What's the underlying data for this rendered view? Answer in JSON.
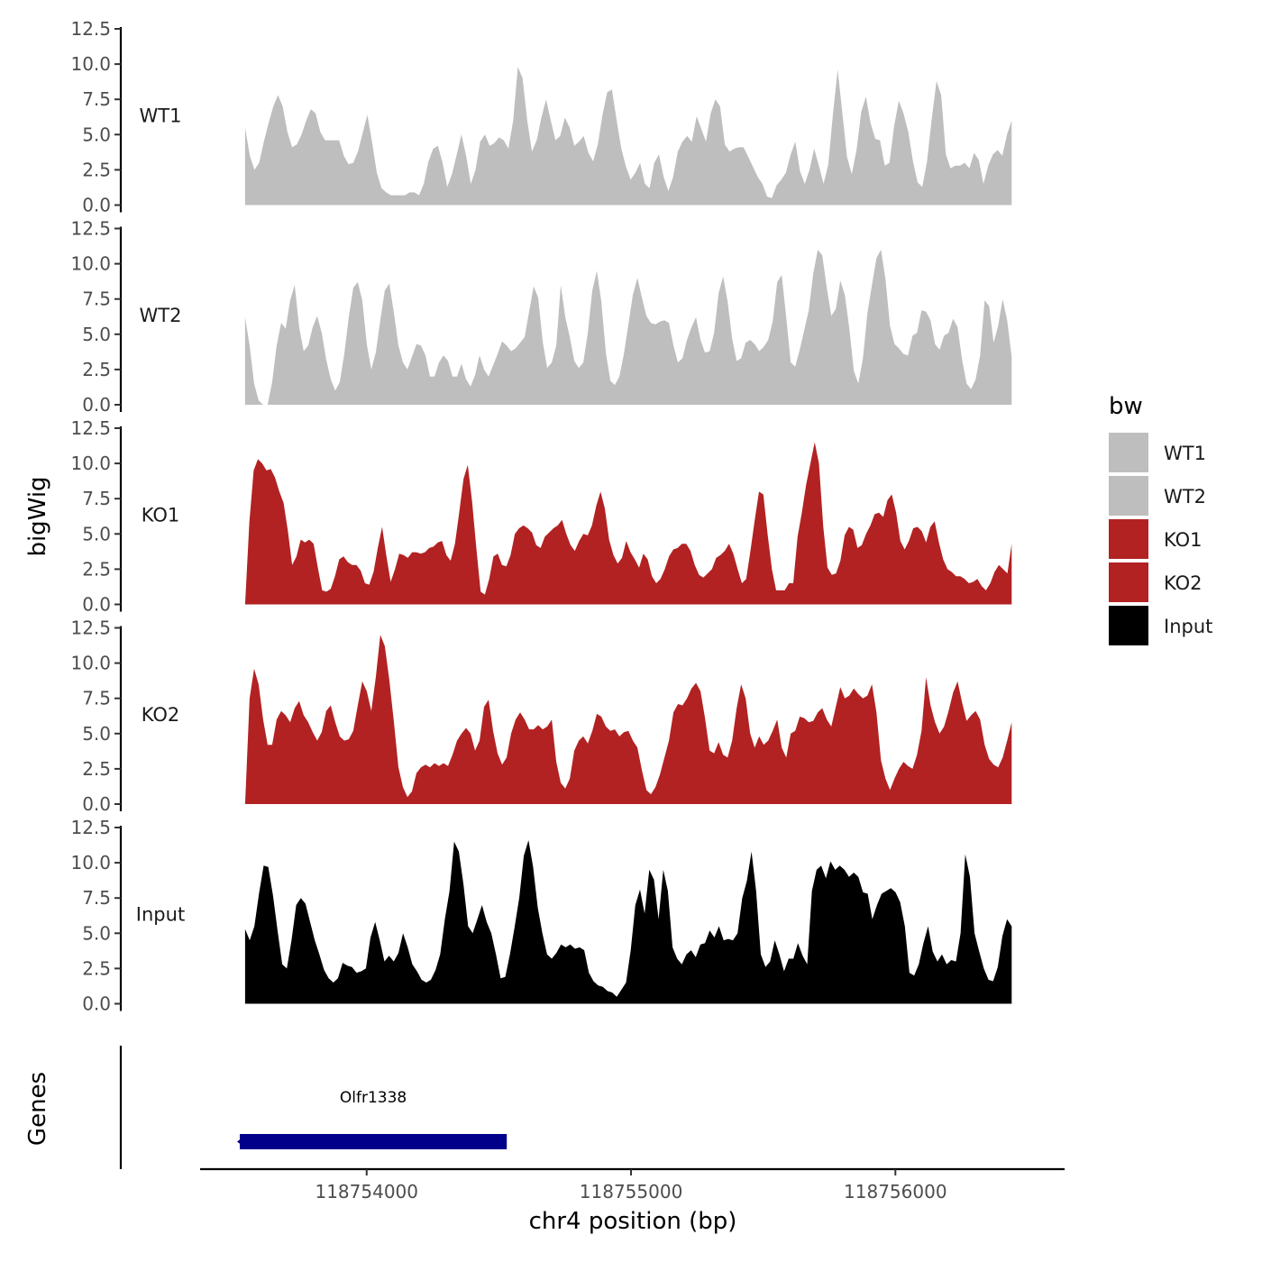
{
  "chart_data": {
    "type": "area",
    "ylabel": "bigWig",
    "xlabel": "chr4 position (bp)",
    "genes_label": "Genes",
    "ylim": [
      0,
      12.5
    ],
    "yticks": [
      "0.0",
      "2.5",
      "5.0",
      "7.5",
      "10.0",
      "12.5"
    ],
    "xlim": [
      118753370,
      118756640
    ],
    "xticks": [
      {
        "value": 118754000,
        "label": "118754000"
      },
      {
        "value": 118755000,
        "label": "118755000"
      },
      {
        "value": 118756000,
        "label": "118756000"
      }
    ],
    "x_start": 118753540,
    "x_end": 118756440,
    "legend": {
      "title": "bw",
      "placement": "right"
    },
    "series": [
      {
        "name": "WT1",
        "color": "#BEBEBE",
        "y": [
          5.5,
          3.5,
          2.5,
          3.0,
          4.5,
          5.8,
          7.0,
          7.8,
          7.0,
          5.2,
          4.1,
          4.3,
          5.0,
          6.0,
          6.8,
          6.5,
          5.2,
          4.6,
          4.6,
          4.6,
          4.6,
          3.5,
          2.9,
          3.0,
          3.8,
          5.1,
          6.4,
          4.5,
          2.3,
          1.2,
          0.9,
          0.7,
          0.7,
          0.7,
          0.7,
          0.9,
          0.9,
          0.7,
          1.5,
          3.1,
          4.0,
          4.2,
          3.0,
          1.3,
          2.2,
          3.6,
          5.0,
          3.5,
          1.5,
          2.5,
          4.5,
          5.0,
          4.2,
          4.4,
          4.8,
          4.6,
          4.0,
          6.0,
          9.8,
          9.0,
          6.0,
          3.8,
          4.6,
          6.2,
          7.5,
          6.0,
          4.6,
          4.9,
          6.2,
          5.5,
          4.2,
          4.5,
          4.9,
          3.7,
          3.1,
          4.3,
          6.4,
          8.0,
          8.2,
          6.0,
          4.0,
          2.7,
          1.8,
          2.3,
          3.0,
          1.5,
          1.2,
          3.0,
          3.6,
          2.0,
          1.0,
          2.0,
          3.8,
          4.5,
          4.9,
          4.5,
          6.3,
          5.4,
          4.5,
          6.5,
          7.5,
          7.0,
          4.3,
          3.8,
          4.0,
          4.1,
          4.1,
          3.4,
          2.7,
          2.0,
          1.5,
          0.6,
          0.5,
          1.4,
          1.8,
          2.3,
          3.6,
          4.5,
          2.4,
          1.5,
          2.5,
          4.0,
          2.8,
          1.5,
          2.9,
          6.5,
          9.6,
          6.5,
          3.4,
          2.2,
          3.9,
          6.6,
          7.7,
          5.8,
          4.7,
          4.6,
          2.8,
          3.0,
          5.6,
          7.4,
          6.5,
          5.2,
          3.1,
          1.6,
          1.3,
          3.1,
          6.1,
          8.8,
          7.8,
          3.6,
          2.6,
          2.8,
          2.8,
          3.0,
          2.6,
          3.7,
          3.2,
          1.5,
          2.8,
          3.6,
          3.9,
          3.5,
          5.0,
          6.0
        ]
      },
      {
        "name": "WT2",
        "color": "#BEBEBE",
        "y": [
          6.2,
          4.2,
          1.5,
          0.3,
          0.0,
          0.0,
          1.6,
          4.2,
          5.8,
          5.4,
          7.4,
          8.5,
          5.5,
          3.8,
          4.2,
          5.5,
          6.3,
          5.1,
          3.2,
          1.8,
          1.0,
          1.6,
          3.6,
          6.2,
          8.3,
          8.7,
          7.4,
          4.3,
          2.5,
          3.7,
          6.0,
          8.1,
          8.6,
          6.5,
          4.2,
          3.0,
          2.5,
          3.4,
          4.3,
          4.2,
          3.5,
          2.0,
          2.0,
          3.0,
          3.5,
          3.1,
          2.0,
          2.0,
          2.9,
          1.8,
          1.3,
          2.1,
          3.5,
          2.5,
          2.0,
          2.8,
          3.6,
          4.5,
          4.2,
          3.8,
          4.0,
          4.4,
          4.8,
          6.6,
          8.4,
          7.6,
          4.5,
          2.6,
          3.0,
          4.2,
          8.5,
          6.2,
          4.8,
          3.1,
          2.6,
          3.0,
          5.1,
          8.1,
          9.5,
          7.3,
          3.7,
          1.7,
          1.4,
          2.0,
          3.6,
          5.7,
          7.8,
          9.0,
          7.6,
          6.3,
          5.8,
          5.7,
          5.9,
          6.0,
          5.8,
          4.2,
          3.0,
          3.3,
          4.6,
          5.5,
          6.2,
          4.6,
          3.7,
          3.8,
          5.1,
          7.9,
          9.1,
          7.3,
          4.7,
          3.1,
          3.3,
          4.4,
          4.6,
          4.3,
          3.8,
          4.1,
          4.6,
          5.9,
          8.7,
          9.2,
          6.2,
          3.0,
          2.7,
          3.9,
          5.3,
          6.7,
          9.3,
          11.0,
          10.6,
          8.3,
          6.3,
          6.8,
          8.8,
          7.8,
          5.4,
          2.4,
          1.5,
          3.3,
          6.5,
          8.5,
          10.4,
          11.0,
          8.9,
          5.6,
          4.3,
          4.0,
          3.6,
          3.5,
          4.9,
          5.1,
          6.7,
          6.6,
          6.0,
          4.3,
          3.9,
          4.9,
          5.1,
          6.1,
          5.5,
          3.2,
          1.5,
          1.1,
          1.8,
          3.5,
          7.4,
          7.0,
          4.4,
          5.6,
          7.5,
          6.0,
          3.4
        ]
      },
      {
        "name": "KO1",
        "color": "#B22222",
        "y": [
          0.0,
          5.8,
          9.5,
          10.3,
          10.0,
          9.5,
          9.6,
          9.0,
          8.0,
          7.2,
          5.2,
          2.8,
          3.4,
          4.6,
          4.4,
          4.6,
          4.3,
          2.6,
          1.0,
          0.9,
          1.1,
          2.0,
          3.2,
          3.4,
          3.0,
          2.8,
          2.8,
          2.4,
          1.5,
          1.4,
          2.3,
          4.0,
          5.5,
          3.4,
          1.6,
          2.5,
          3.6,
          3.5,
          3.3,
          3.7,
          3.7,
          3.6,
          3.7,
          4.0,
          4.1,
          4.4,
          4.5,
          3.5,
          3.1,
          4.3,
          6.5,
          8.9,
          9.9,
          7.3,
          4.0,
          0.9,
          0.7,
          1.8,
          3.4,
          3.6,
          2.8,
          2.7,
          3.5,
          5.0,
          5.4,
          5.6,
          5.4,
          5.1,
          4.2,
          4.0,
          4.8,
          5.1,
          5.4,
          5.6,
          6.0,
          5.0,
          4.2,
          3.8,
          4.5,
          5.0,
          4.9,
          5.6,
          7.0,
          8.0,
          6.8,
          4.6,
          3.5,
          2.9,
          3.3,
          4.5,
          3.7,
          3.2,
          2.6,
          3.6,
          3.2,
          2.0,
          1.5,
          1.8,
          2.5,
          3.4,
          3.9,
          4.0,
          4.3,
          4.3,
          3.8,
          2.8,
          2.1,
          1.9,
          2.2,
          2.5,
          3.3,
          3.5,
          3.8,
          4.3,
          3.6,
          2.5,
          1.5,
          1.8,
          3.8,
          6.0,
          8.0,
          7.8,
          5.0,
          2.5,
          1.0,
          1.0,
          1.0,
          1.5,
          1.5,
          4.8,
          6.5,
          8.5,
          10.0,
          11.5,
          10.0,
          5.5,
          2.6,
          2.1,
          2.2,
          3.1,
          4.9,
          5.5,
          5.3,
          4.0,
          4.2,
          5.0,
          5.6,
          6.4,
          6.5,
          6.2,
          7.4,
          7.8,
          6.5,
          4.5,
          3.9,
          4.5,
          5.4,
          5.5,
          5.2,
          4.4,
          5.5,
          5.9,
          4.4,
          3.2,
          2.5,
          2.3,
          2.0,
          2.0,
          1.8,
          1.5,
          1.6,
          1.8,
          1.3,
          1.0,
          1.5,
          2.3,
          2.8,
          2.5,
          2.2,
          4.3
        ]
      },
      {
        "name": "KO2",
        "color": "#B22222",
        "y": [
          0.0,
          7.5,
          9.6,
          8.5,
          6.0,
          4.2,
          4.2,
          6.0,
          6.6,
          6.3,
          5.8,
          6.8,
          7.3,
          6.3,
          5.8,
          5.1,
          4.5,
          5.1,
          6.6,
          7.0,
          5.8,
          4.8,
          4.5,
          4.6,
          5.2,
          7.0,
          8.7,
          8.0,
          6.6,
          9.0,
          12.0,
          11.2,
          8.8,
          5.8,
          2.6,
          1.2,
          0.5,
          0.9,
          2.2,
          2.6,
          2.8,
          2.6,
          2.9,
          2.7,
          2.9,
          2.7,
          3.5,
          4.5,
          5.0,
          5.4,
          5.0,
          3.8,
          4.5,
          6.9,
          7.4,
          5.2,
          3.6,
          2.8,
          3.3,
          5.0,
          6.0,
          6.5,
          6.0,
          5.3,
          5.3,
          5.6,
          5.3,
          5.5,
          6.0,
          3.0,
          1.5,
          1.1,
          1.8,
          3.8,
          4.5,
          4.8,
          4.3,
          5.2,
          6.4,
          6.2,
          5.5,
          5.2,
          5.3,
          4.8,
          5.1,
          5.2,
          4.5,
          4.0,
          2.4,
          1.0,
          0.7,
          1.2,
          2.1,
          3.3,
          4.5,
          6.5,
          7.1,
          7.0,
          7.5,
          8.2,
          8.6,
          8.0,
          6.1,
          3.8,
          3.6,
          4.4,
          3.5,
          3.3,
          4.5,
          6.8,
          8.5,
          7.5,
          5.0,
          4.0,
          4.8,
          4.2,
          4.5,
          5.2,
          6.0,
          4.0,
          3.3,
          5.0,
          5.2,
          6.2,
          6.1,
          5.8,
          5.9,
          6.5,
          6.8,
          6.0,
          5.5,
          6.9,
          8.3,
          7.5,
          7.7,
          8.2,
          7.8,
          7.5,
          7.7,
          8.5,
          6.5,
          3.1,
          1.8,
          1.0,
          1.8,
          2.5,
          3.0,
          2.7,
          2.5,
          3.5,
          5.2,
          9.0,
          7.0,
          5.8,
          5.0,
          5.5,
          6.6,
          7.9,
          8.7,
          7.2,
          5.9,
          6.3,
          6.6,
          6.0,
          4.2,
          3.2,
          2.8,
          2.6,
          3.3,
          4.5,
          5.8
        ]
      },
      {
        "name": "Input",
        "color": "#000000",
        "y": [
          5.3,
          4.5,
          5.5,
          7.8,
          9.8,
          9.7,
          7.7,
          5.2,
          2.8,
          2.5,
          4.5,
          7.0,
          7.5,
          7.1,
          5.8,
          4.5,
          3.5,
          2.4,
          1.8,
          1.5,
          1.8,
          2.9,
          2.7,
          2.6,
          2.2,
          2.3,
          2.5,
          4.7,
          5.8,
          4.5,
          3.0,
          3.4,
          3.0,
          3.6,
          5.0,
          4.0,
          2.8,
          2.3,
          1.7,
          1.5,
          1.7,
          2.4,
          3.5,
          6.0,
          8.0,
          11.5,
          10.8,
          8.5,
          5.5,
          5.0,
          6.0,
          7.0,
          5.8,
          5.0,
          3.5,
          1.8,
          1.9,
          3.5,
          5.4,
          7.5,
          10.5,
          11.6,
          9.7,
          6.8,
          5.0,
          3.5,
          3.2,
          3.6,
          4.2,
          4.0,
          4.2,
          3.9,
          4.0,
          3.8,
          2.2,
          1.6,
          1.3,
          1.2,
          0.9,
          0.8,
          0.5,
          1.0,
          1.5,
          3.8,
          7.0,
          8.1,
          6.4,
          9.5,
          8.8,
          6.0,
          9.5,
          8.0,
          4.0,
          3.2,
          2.8,
          3.5,
          3.8,
          3.3,
          4.2,
          4.3,
          5.2,
          4.7,
          5.5,
          4.5,
          4.6,
          4.5,
          5.0,
          7.5,
          8.7,
          10.8,
          8.0,
          3.5,
          2.6,
          3.0,
          4.5,
          3.5,
          2.3,
          3.2,
          3.2,
          4.3,
          3.4,
          2.8,
          8.0,
          9.5,
          9.8,
          8.9,
          10.1,
          9.5,
          9.8,
          9.5,
          9.0,
          9.3,
          9.0,
          7.9,
          7.8,
          6.0,
          7.0,
          7.8,
          8.0,
          8.2,
          7.9,
          7.2,
          5.5,
          2.2,
          2.0,
          2.8,
          4.3,
          5.5,
          3.7,
          3.0,
          3.5,
          2.8,
          3.1,
          3.0,
          5.0,
          10.6,
          9.0,
          5.0,
          3.7,
          2.5,
          1.7,
          1.6,
          2.6,
          4.8,
          6.0,
          5.5
        ]
      }
    ],
    "genes": [
      {
        "name": "Olfr1338",
        "start": 118753520,
        "end": 118754530,
        "strand": "-",
        "color": "#00008B"
      }
    ]
  }
}
